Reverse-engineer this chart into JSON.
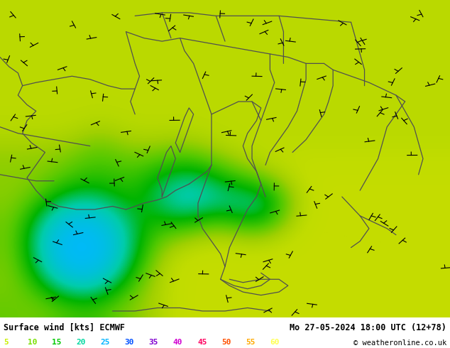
{
  "title_left": "Surface wind [kts] ECMWF",
  "title_right": "Mo 27-05-2024 18:00 UTC (12+78)",
  "copyright": "© weatheronline.co.uk",
  "legend_items": [
    [
      "5",
      "#c8f000"
    ],
    [
      "10",
      "#78e000"
    ],
    [
      "15",
      "#00c800"
    ],
    [
      "20",
      "#00d8a0"
    ],
    [
      "25",
      "#00b4ff"
    ],
    [
      "30",
      "#0050ff"
    ],
    [
      "35",
      "#8000d0"
    ],
    [
      "40",
      "#d000d0"
    ],
    [
      "45",
      "#ff0060"
    ],
    [
      "50",
      "#ff5000"
    ],
    [
      "55",
      "#ffaa00"
    ],
    [
      "60",
      "#ffff50"
    ]
  ],
  "figsize": [
    6.34,
    4.9
  ],
  "dpi": 100
}
